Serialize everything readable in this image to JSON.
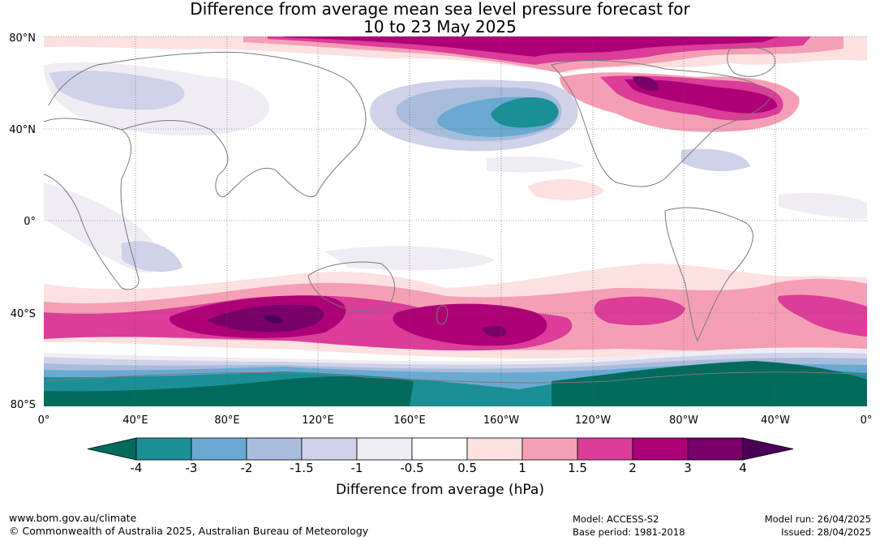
{
  "title_line1": "Difference from average mean sea level pressure forecast for",
  "title_line2": "10 to 23 May 2025",
  "lat_labels": [
    "80°N",
    "40°N",
    "0°",
    "40°S",
    "80°S"
  ],
  "lon_labels": [
    "0°",
    "40°E",
    "80°E",
    "120°E",
    "160°E",
    "160°W",
    "120°W",
    "80°W",
    "40°W",
    "0°"
  ],
  "colorbar": {
    "ticks": [
      "-4",
      "-3",
      "-2",
      "-1.5",
      "-1",
      "-0.5",
      "0.5",
      "1",
      "1.5",
      "2",
      "3",
      "4"
    ],
    "colors": [
      "#006b5c",
      "#1b8f96",
      "#6aa9d2",
      "#a8bcdb",
      "#cfd2e8",
      "#efecf4",
      "#ffffff",
      "#fde0e0",
      "#f59fb6",
      "#db3d98",
      "#ad0077",
      "#780068",
      "#4b0058"
    ],
    "title": "Difference from average (hPa)"
  },
  "footer": {
    "url": "www.bom.gov.au/climate",
    "copyright": "© Commonwealth of Australia 2025, Australian Bureau of Meteorology",
    "model": "Model: ACCESS-S2",
    "base_period": "Base period: 1981-2018",
    "model_run": "Model run: 26/04/2025",
    "issued": "Issued: 28/04/2025"
  }
}
